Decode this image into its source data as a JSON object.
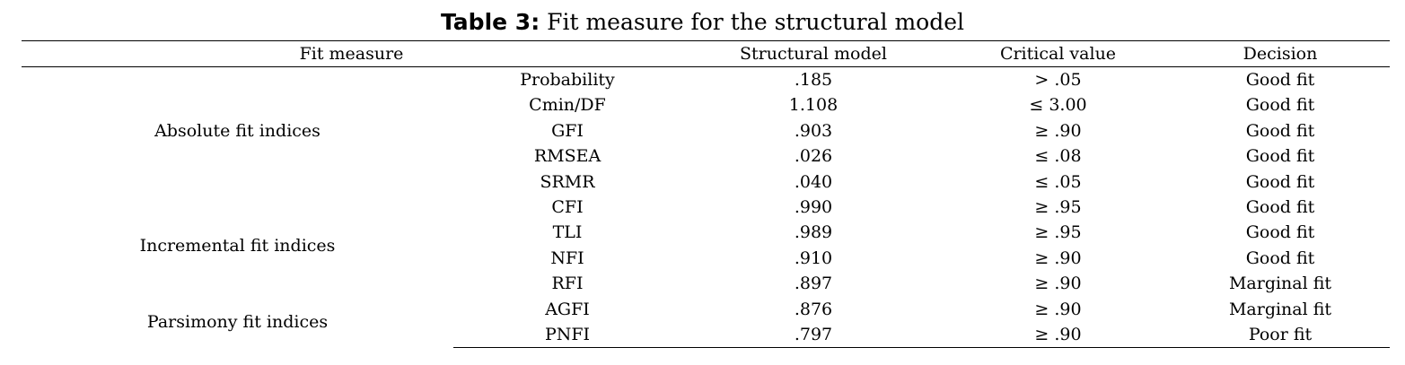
{
  "caption": {
    "label": "Table 3:",
    "text": "Fit measure for the structural model"
  },
  "columns": {
    "fit_measure": "Fit measure",
    "structural_model": "Structural model",
    "critical_value": "Critical value",
    "decision": "Decision"
  },
  "groups": {
    "absolute": "Absolute fit indices",
    "incremental": "Incremental fit indices",
    "parsimony": "Parsimony fit indices"
  },
  "rows": [
    {
      "measure": "Probability",
      "value": ".185",
      "critical": "> .05",
      "decision": "Good fit"
    },
    {
      "measure": "Cmin/DF",
      "value": "1.108",
      "critical": "≤ 3.00",
      "decision": "Good fit"
    },
    {
      "measure": "GFI",
      "value": ".903",
      "critical": "≥ .90",
      "decision": "Good fit"
    },
    {
      "measure": "RMSEA",
      "value": ".026",
      "critical": "≤ .08",
      "decision": "Good fit"
    },
    {
      "measure": "SRMR",
      "value": ".040",
      "critical": "≤ .05",
      "decision": "Good fit"
    },
    {
      "measure": "CFI",
      "value": ".990",
      "critical": "≥ .95",
      "decision": "Good fit"
    },
    {
      "measure": "TLI",
      "value": ".989",
      "critical": "≥ .95",
      "decision": "Good fit"
    },
    {
      "measure": "NFI",
      "value": ".910",
      "critical": "≥ .90",
      "decision": "Good fit"
    },
    {
      "measure": "RFI",
      "value": ".897",
      "critical": "≥ .90",
      "decision": "Marginal fit"
    },
    {
      "measure": "AGFI",
      "value": ".876",
      "critical": "≥ .90",
      "decision": "Marginal fit"
    },
    {
      "measure": "PNFI",
      "value": ".797",
      "critical": "≥ .90",
      "decision": "Poor fit"
    }
  ]
}
